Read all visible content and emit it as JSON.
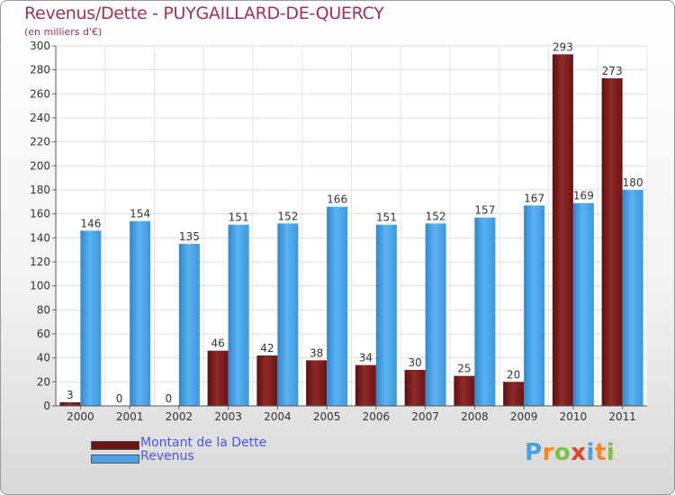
{
  "title": "Revenus/Dette - PUYGAILLARD-DE-QUERCY",
  "subtitle": "(en milliers d'€)",
  "logo_text": "Proxiti",
  "colors": {
    "dette": "#7a1a1a",
    "revenus": "#4aa3e6",
    "title": "#a0305a",
    "legend_text": "#4a55e8"
  },
  "chart_data": {
    "type": "bar",
    "title": "Revenus/Dette - PUYGAILLARD-DE-QUERCY",
    "ylabel": "(en milliers d'€)",
    "ylim": [
      0,
      300
    ],
    "yticks": [
      0,
      20,
      40,
      60,
      80,
      100,
      120,
      140,
      160,
      180,
      200,
      220,
      240,
      260,
      280,
      300
    ],
    "grid": true,
    "legend_position": "bottom-left",
    "categories": [
      "2000",
      "2001",
      "2002",
      "2003",
      "2004",
      "2005",
      "2006",
      "2007",
      "2008",
      "2009",
      "2010",
      "2011"
    ],
    "series": [
      {
        "name": "Montant de la Dette",
        "values": [
          3,
          0,
          0,
          46,
          42,
          38,
          34,
          30,
          25,
          20,
          293,
          273
        ]
      },
      {
        "name": "Revenus",
        "values": [
          146,
          154,
          135,
          151,
          152,
          166,
          151,
          152,
          157,
          167,
          169,
          180
        ]
      }
    ]
  }
}
